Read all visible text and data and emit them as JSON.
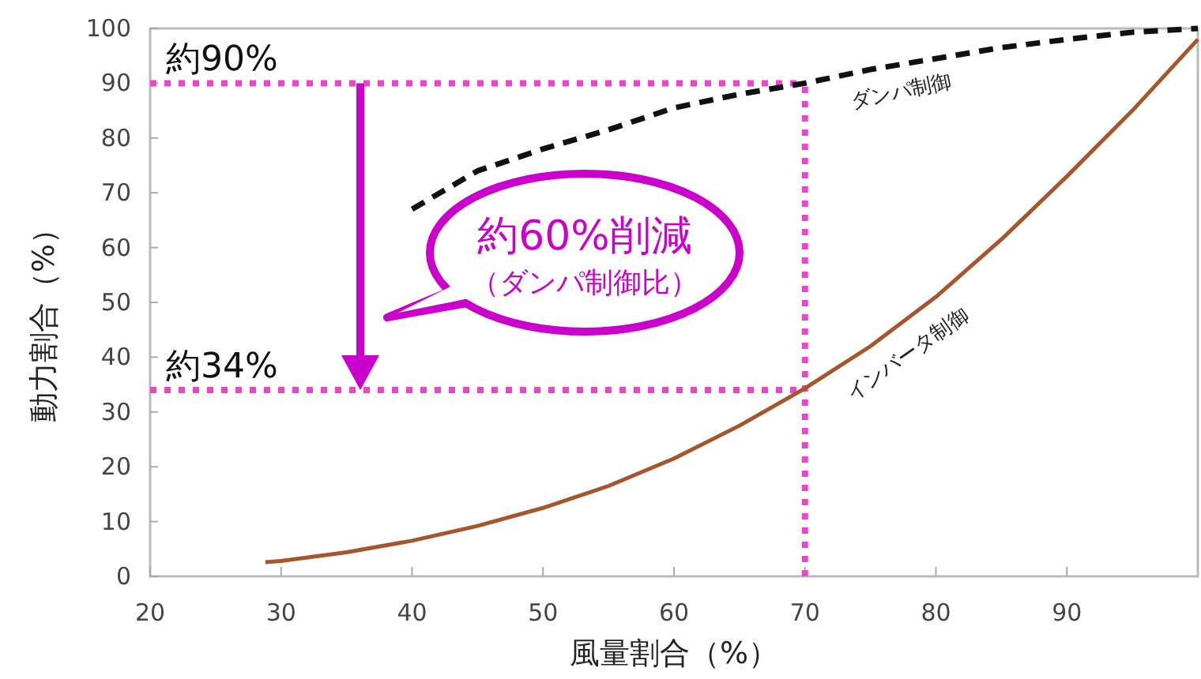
{
  "chart_data": {
    "type": "line",
    "xlabel": "風量割合（%）",
    "ylabel": "動力割合（%）",
    "xlim": [
      20,
      100
    ],
    "ylim": [
      0,
      100
    ],
    "xticks": [
      20,
      30,
      40,
      50,
      60,
      70,
      80,
      90
    ],
    "yticks": [
      0,
      10,
      20,
      30,
      40,
      50,
      60,
      70,
      80,
      90,
      100
    ],
    "legend": false,
    "marker": "none",
    "series": [
      {
        "name": "ダンパ制御",
        "color": "#111111",
        "line_style": "dashed",
        "x": [
          40,
          45,
          50,
          55,
          60,
          65,
          70,
          75,
          80,
          85,
          90,
          95,
          100
        ],
        "values": [
          67,
          74,
          78,
          81.5,
          85.5,
          88,
          90,
          92.5,
          94.5,
          96.5,
          98,
          99.3,
          100
        ]
      },
      {
        "name": "インバータ制御",
        "color": "#a5562a",
        "line_style": "solid",
        "x": [
          28.8,
          30,
          35,
          40,
          45,
          50,
          55,
          60,
          65,
          70,
          75,
          80,
          85,
          90,
          95,
          100
        ],
        "values": [
          2.6,
          2.8,
          4.4,
          6.5,
          9.2,
          12.5,
          16.5,
          21.5,
          27.5,
          34.3,
          42,
          51,
          61.5,
          73,
          85,
          98
        ]
      }
    ],
    "ref_lines": [
      {
        "axis": "y",
        "value": 90,
        "label": "約90%",
        "color": "#ee44cc",
        "line_style": "dotted"
      },
      {
        "axis": "y",
        "value": 34,
        "label": "約34%",
        "color": "#ee44cc",
        "line_style": "dotted"
      },
      {
        "axis": "x",
        "value": 70,
        "color": "#ee44cc",
        "line_style": "dotted"
      }
    ],
    "annotations": [
      "約60%削減",
      "（ダンパ制御比）"
    ]
  }
}
